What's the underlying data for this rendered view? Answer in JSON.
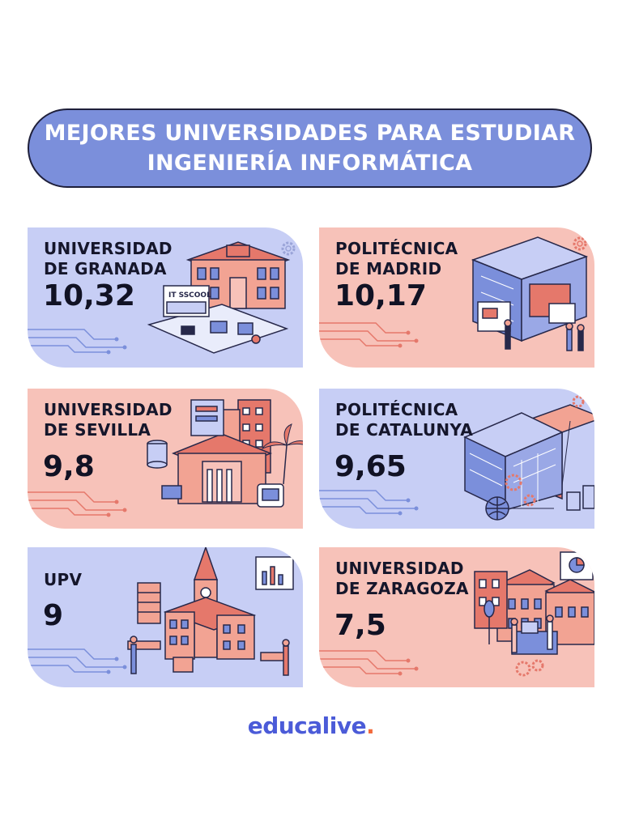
{
  "title": {
    "line1": "MEJORES UNIVERSIDADES PARA ESTUDIAR",
    "line2": "INGENIERÍA INFORMÁTICA"
  },
  "cards": [
    {
      "name_line1": "UNIVERSIDAD",
      "name_line2": "DE GRANADA",
      "score": "10,32",
      "theme": "blue",
      "sign": "IT SSCOOL"
    },
    {
      "name_line1": "POLITÉCNICA",
      "name_line2": "DE MADRID",
      "score": "10,17",
      "theme": "pink"
    },
    {
      "name_line1": "UNIVERSIDAD",
      "name_line2": "DE SEVILLA",
      "score": "9,8",
      "theme": "pink"
    },
    {
      "name_line1": "POLITÉCNICA",
      "name_line2": "DE CATALUNYA",
      "score": "9,65",
      "theme": "blue"
    },
    {
      "name_line1": "UPV",
      "name_line2": "",
      "score": "9",
      "theme": "blue"
    },
    {
      "name_line1": "UNIVERSIDAD",
      "name_line2": "DE ZARAGOZA",
      "score": "7,5",
      "theme": "pink"
    }
  ],
  "logo": {
    "text": "educalive",
    "dot": "."
  },
  "colors": {
    "blue": "#7b8fdb",
    "blue_light": "#c7cef5",
    "pink": "#f7c2b9",
    "accent": "#f26a3c",
    "brand": "#4b5bd8"
  }
}
